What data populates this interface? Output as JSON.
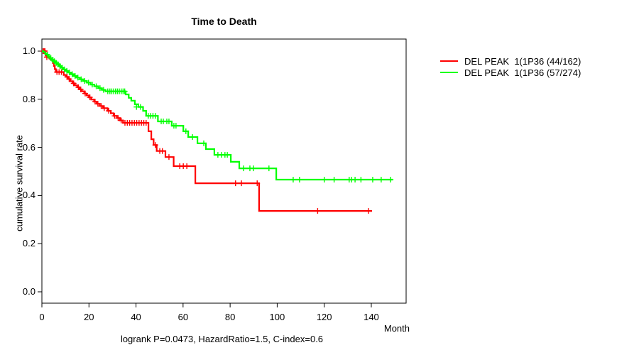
{
  "title": "Time to Death",
  "footnote": "logrank P=0.0473, HazardRatio=1.5, C-index=0.6",
  "axes": {
    "y_label": "cumulative survival rate",
    "x_label": "Month",
    "y_tick_labels": [
      "1.0",
      "0.8",
      "0.6",
      "0.4",
      "0.2",
      "0.0"
    ],
    "x_tick_labels": [
      "0",
      "20",
      "40",
      "60",
      "80",
      "100",
      "120",
      "140"
    ]
  },
  "chart_data": {
    "type": "line",
    "subtype": "kaplan-meier-step",
    "title": "Time to Death",
    "xlabel": "Month",
    "ylabel": "cumulative survival rate",
    "xlim": [
      0,
      155
    ],
    "ylim": [
      0,
      1.0
    ],
    "x_ticks": [
      0,
      20,
      40,
      60,
      80,
      100,
      120,
      140
    ],
    "y_ticks": [
      0.0,
      0.2,
      0.4,
      0.6,
      0.8,
      1.0
    ],
    "grid": false,
    "legend_position": "right-outside",
    "annotation": "logrank P=0.0473, HazardRatio=1.5, C-index=0.6",
    "series": [
      {
        "name": "DEL PEAK  1(1P36 (44/162)",
        "color": "#ff0000",
        "events_total": "44/162",
        "end_x": 140.3,
        "steps": [
          [
            0,
            1.0
          ],
          [
            1.6,
            0.981
          ],
          [
            2.5,
            0.975
          ],
          [
            3.2,
            0.969
          ],
          [
            4.2,
            0.963
          ],
          [
            4.7,
            0.95
          ],
          [
            5.1,
            0.938
          ],
          [
            5.5,
            0.925
          ],
          [
            5.9,
            0.913
          ],
          [
            9.3,
            0.901
          ],
          [
            10.3,
            0.893
          ],
          [
            11.2,
            0.884
          ],
          [
            12.1,
            0.875
          ],
          [
            13.0,
            0.866
          ],
          [
            14.0,
            0.858
          ],
          [
            15.0,
            0.85
          ],
          [
            16.0,
            0.841
          ],
          [
            17.0,
            0.833
          ],
          [
            18.0,
            0.824
          ],
          [
            19.0,
            0.816
          ],
          [
            20.0,
            0.808
          ],
          [
            21.0,
            0.799
          ],
          [
            22.2,
            0.79
          ],
          [
            23.3,
            0.781
          ],
          [
            24.6,
            0.772
          ],
          [
            26.0,
            0.763
          ],
          [
            27.9,
            0.752
          ],
          [
            29.3,
            0.742
          ],
          [
            30.5,
            0.731
          ],
          [
            31.9,
            0.722
          ],
          [
            33.2,
            0.712
          ],
          [
            34.5,
            0.702
          ],
          [
            45.3,
            0.667
          ],
          [
            46.5,
            0.634
          ],
          [
            47.5,
            0.61
          ],
          [
            48.8,
            0.585
          ],
          [
            52.5,
            0.56
          ],
          [
            56.0,
            0.522
          ],
          [
            65.2,
            0.451
          ],
          [
            92.3,
            0.336
          ]
        ],
        "censors": [
          [
            0.5,
            1.0
          ],
          [
            0.9,
            1.0
          ],
          [
            1.3,
            1.0
          ],
          [
            2.1,
            0.975
          ],
          [
            6.4,
            0.913
          ],
          [
            7.3,
            0.913
          ],
          [
            8.3,
            0.913
          ],
          [
            10.7,
            0.893
          ],
          [
            11.6,
            0.884
          ],
          [
            13.5,
            0.866
          ],
          [
            15.5,
            0.85
          ],
          [
            16.5,
            0.841
          ],
          [
            18.4,
            0.824
          ],
          [
            20.4,
            0.808
          ],
          [
            22.6,
            0.79
          ],
          [
            23.8,
            0.781
          ],
          [
            25.2,
            0.772
          ],
          [
            26.5,
            0.763
          ],
          [
            28.4,
            0.752
          ],
          [
            30.9,
            0.731
          ],
          [
            32.4,
            0.722
          ],
          [
            33.7,
            0.712
          ],
          [
            35.3,
            0.702
          ],
          [
            36.3,
            0.702
          ],
          [
            37.3,
            0.702
          ],
          [
            38.3,
            0.702
          ],
          [
            39.3,
            0.702
          ],
          [
            40.3,
            0.702
          ],
          [
            41.3,
            0.702
          ],
          [
            42.3,
            0.702
          ],
          [
            43.3,
            0.702
          ],
          [
            44.3,
            0.702
          ],
          [
            48.2,
            0.61
          ],
          [
            50.1,
            0.585
          ],
          [
            51.2,
            0.585
          ],
          [
            54.0,
            0.56
          ],
          [
            58.6,
            0.522
          ],
          [
            60.1,
            0.522
          ],
          [
            61.6,
            0.522
          ],
          [
            82.3,
            0.451
          ],
          [
            84.8,
            0.451
          ],
          [
            91.5,
            0.451
          ],
          [
            117.2,
            0.336
          ],
          [
            138.8,
            0.336
          ]
        ]
      },
      {
        "name": "DEL PEAK  1(1P36 (57/274)",
        "color": "#00ff00",
        "events_total": "57/274",
        "end_x": 149.1,
        "steps": [
          [
            0,
            1.0
          ],
          [
            0.7,
            0.996
          ],
          [
            1.4,
            0.989
          ],
          [
            2.1,
            0.985
          ],
          [
            2.8,
            0.978
          ],
          [
            3.5,
            0.971
          ],
          [
            4.2,
            0.964
          ],
          [
            4.9,
            0.958
          ],
          [
            5.7,
            0.951
          ],
          [
            6.5,
            0.945
          ],
          [
            7.3,
            0.938
          ],
          [
            8.1,
            0.931
          ],
          [
            9.1,
            0.924
          ],
          [
            10.1,
            0.918
          ],
          [
            11.2,
            0.911
          ],
          [
            12.3,
            0.904
          ],
          [
            13.5,
            0.897
          ],
          [
            14.7,
            0.89
          ],
          [
            16.1,
            0.883
          ],
          [
            17.5,
            0.876
          ],
          [
            19.1,
            0.869
          ],
          [
            20.7,
            0.861
          ],
          [
            22.3,
            0.854
          ],
          [
            24.0,
            0.846
          ],
          [
            25.5,
            0.839
          ],
          [
            27.0,
            0.833
          ],
          [
            35.6,
            0.82
          ],
          [
            36.9,
            0.806
          ],
          [
            38.0,
            0.794
          ],
          [
            39.5,
            0.779
          ],
          [
            41.0,
            0.768
          ],
          [
            43.0,
            0.752
          ],
          [
            44.3,
            0.731
          ],
          [
            49.3,
            0.708
          ],
          [
            55.2,
            0.69
          ],
          [
            60.1,
            0.667
          ],
          [
            62.2,
            0.643
          ],
          [
            66.1,
            0.617
          ],
          [
            69.7,
            0.593
          ],
          [
            73.3,
            0.569
          ],
          [
            80.3,
            0.54
          ],
          [
            83.9,
            0.513
          ],
          [
            99.6,
            0.466
          ]
        ],
        "censors": [
          [
            2.4,
            0.985
          ],
          [
            3.8,
            0.971
          ],
          [
            4.5,
            0.964
          ],
          [
            5.3,
            0.958
          ],
          [
            6.1,
            0.951
          ],
          [
            6.9,
            0.945
          ],
          [
            7.7,
            0.938
          ],
          [
            8.6,
            0.931
          ],
          [
            9.6,
            0.924
          ],
          [
            10.6,
            0.918
          ],
          [
            11.7,
            0.911
          ],
          [
            12.9,
            0.904
          ],
          [
            14.1,
            0.897
          ],
          [
            15.3,
            0.89
          ],
          [
            16.7,
            0.883
          ],
          [
            18.2,
            0.876
          ],
          [
            19.8,
            0.869
          ],
          [
            21.4,
            0.861
          ],
          [
            23.1,
            0.854
          ],
          [
            24.7,
            0.846
          ],
          [
            26.2,
            0.839
          ],
          [
            28.0,
            0.833
          ],
          [
            28.9,
            0.833
          ],
          [
            29.7,
            0.833
          ],
          [
            30.5,
            0.833
          ],
          [
            31.3,
            0.833
          ],
          [
            32.1,
            0.833
          ],
          [
            32.9,
            0.833
          ],
          [
            33.7,
            0.833
          ],
          [
            34.5,
            0.833
          ],
          [
            35.2,
            0.833
          ],
          [
            40.2,
            0.768
          ],
          [
            41.9,
            0.768
          ],
          [
            45.2,
            0.731
          ],
          [
            46.2,
            0.731
          ],
          [
            47.2,
            0.731
          ],
          [
            48.2,
            0.731
          ],
          [
            50.7,
            0.708
          ],
          [
            51.6,
            0.708
          ],
          [
            53.1,
            0.708
          ],
          [
            54.0,
            0.708
          ],
          [
            56.1,
            0.69
          ],
          [
            57.0,
            0.69
          ],
          [
            61.2,
            0.667
          ],
          [
            64.0,
            0.643
          ],
          [
            68.8,
            0.617
          ],
          [
            74.8,
            0.569
          ],
          [
            76.3,
            0.569
          ],
          [
            77.8,
            0.569
          ],
          [
            78.8,
            0.569
          ],
          [
            85.7,
            0.513
          ],
          [
            88.4,
            0.513
          ],
          [
            89.9,
            0.513
          ],
          [
            96.5,
            0.513
          ],
          [
            106.8,
            0.466
          ],
          [
            109.5,
            0.466
          ],
          [
            120.0,
            0.466
          ],
          [
            124.2,
            0.466
          ],
          [
            130.6,
            0.466
          ],
          [
            131.6,
            0.466
          ],
          [
            133.1,
            0.466
          ],
          [
            135.6,
            0.466
          ],
          [
            140.6,
            0.466
          ],
          [
            144.2,
            0.466
          ],
          [
            148.2,
            0.466
          ]
        ]
      }
    ]
  }
}
